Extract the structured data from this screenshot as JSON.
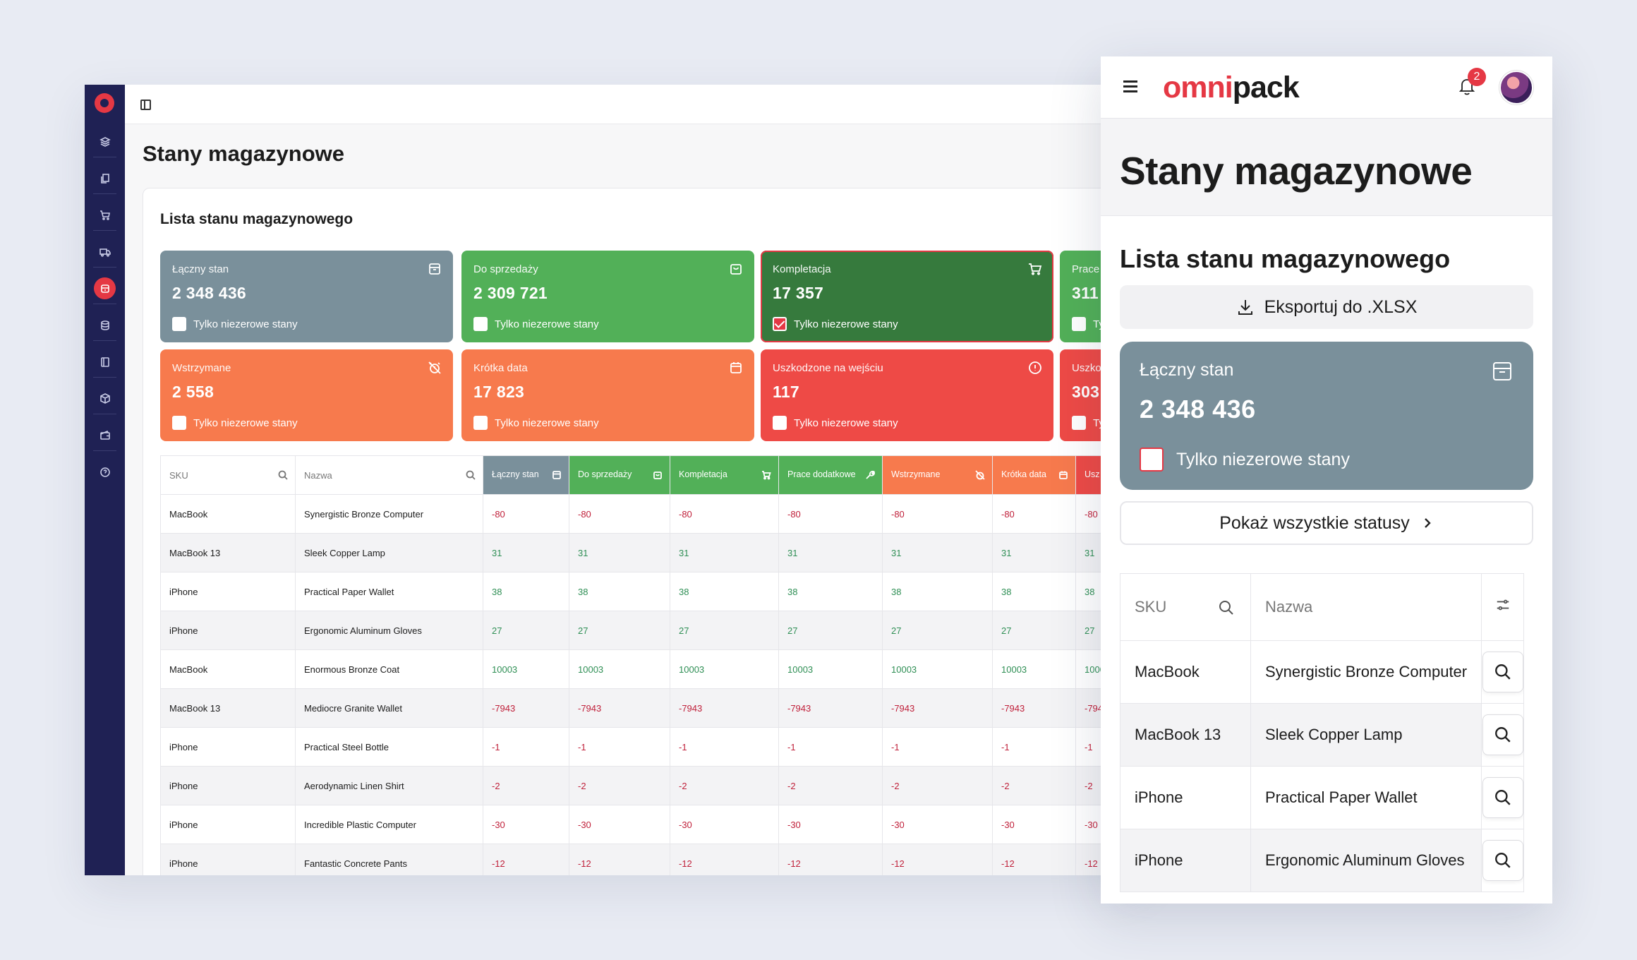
{
  "desktop": {
    "page_title": "Stany magazynowe",
    "panel_title": "Lista stanu magazynowego",
    "checkbox_label": "Tylko niezerowe stany",
    "cards": [
      {
        "label": "Łączny stan",
        "value": "2 348 436",
        "color": "#7a909b",
        "icon": "box-icon",
        "checked": false
      },
      {
        "label": "Do sprzedaży",
        "value": "2 309 721",
        "color": "#52b058",
        "icon": "bag-icon",
        "checked": false
      },
      {
        "label": "Kompletacja",
        "value": "17 357",
        "color": "#367a3d",
        "icon": "cart-icon",
        "checked": true
      },
      {
        "label": "Prace",
        "value": "311",
        "color": "#52b058",
        "icon": "wrench-icon",
        "checked": false
      },
      {
        "label": "Wstrzymane",
        "value": "2 558",
        "color": "#f77a4d",
        "icon": "alarm-off-icon",
        "checked": false
      },
      {
        "label": "Krótka data",
        "value": "17 823",
        "color": "#f77a4d",
        "icon": "calendar-icon",
        "checked": false
      },
      {
        "label": "Uszkodzone na wejściu",
        "value": "117",
        "color": "#ee4a46",
        "icon": "info-icon",
        "checked": false
      },
      {
        "label": "Uszko",
        "value": "303",
        "color": "#ee4a46",
        "icon": "info-icon",
        "checked": false
      }
    ],
    "table": {
      "sku_header": "SKU",
      "name_header": "Nazwa",
      "columns": [
        {
          "label": "Łączny stan",
          "color": "#7a909b"
        },
        {
          "label": "Do sprzedaży",
          "color": "#52b058"
        },
        {
          "label": "Kompletacja",
          "color": "#52b058"
        },
        {
          "label": "Prace dodatkowe",
          "color": "#52b058"
        },
        {
          "label": "Wstrzymane",
          "color": "#f77a4d"
        },
        {
          "label": "Krótka data",
          "color": "#f77a4d"
        },
        {
          "label": "Usz na w",
          "color": "#ee4a46"
        }
      ],
      "rows": [
        {
          "sku": "MacBook",
          "name": "Synergistic Bronze Computer",
          "v": "-80"
        },
        {
          "sku": "MacBook 13",
          "name": "Sleek Copper Lamp",
          "v": "31"
        },
        {
          "sku": "iPhone",
          "name": "Practical Paper Wallet",
          "v": "38"
        },
        {
          "sku": "iPhone",
          "name": "Ergonomic Aluminum Gloves",
          "v": "27"
        },
        {
          "sku": "MacBook",
          "name": "Enormous Bronze Coat",
          "v": "10003"
        },
        {
          "sku": "MacBook 13",
          "name": "Mediocre Granite Wallet",
          "v": "-7943"
        },
        {
          "sku": "iPhone",
          "name": "Practical Steel Bottle",
          "v": "-1"
        },
        {
          "sku": "iPhone",
          "name": "Aerodynamic Linen Shirt",
          "v": "-2"
        },
        {
          "sku": "iPhone",
          "name": "Incredible Plastic Computer",
          "v": "-30"
        },
        {
          "sku": "iPhone",
          "name": "Fantastic Concrete Pants",
          "v": "-12"
        }
      ]
    }
  },
  "mobile": {
    "brand_part1": "omni",
    "brand_part2": "pack",
    "notification_count": "2",
    "page_title": "Stany magazynowe",
    "panel_title": "Lista stanu magazynowego",
    "export_label": "Eksportuj do .XLSX",
    "card": {
      "label": "Łączny stan",
      "value": "2 348 436",
      "checkbox_label": "Tylko niezerowe stany"
    },
    "show_all_label": "Pokaż wszystkie statusy",
    "table": {
      "sku_header": "SKU",
      "name_header": "Nazwa",
      "rows": [
        {
          "sku": "MacBook",
          "name": "Synergistic Bronze Computer"
        },
        {
          "sku": "MacBook 13",
          "name": "Sleek Copper Lamp"
        },
        {
          "sku": "iPhone",
          "name": "Practical Paper Wallet"
        },
        {
          "sku": "iPhone",
          "name": "Ergonomic Aluminum Gloves"
        }
      ]
    }
  }
}
